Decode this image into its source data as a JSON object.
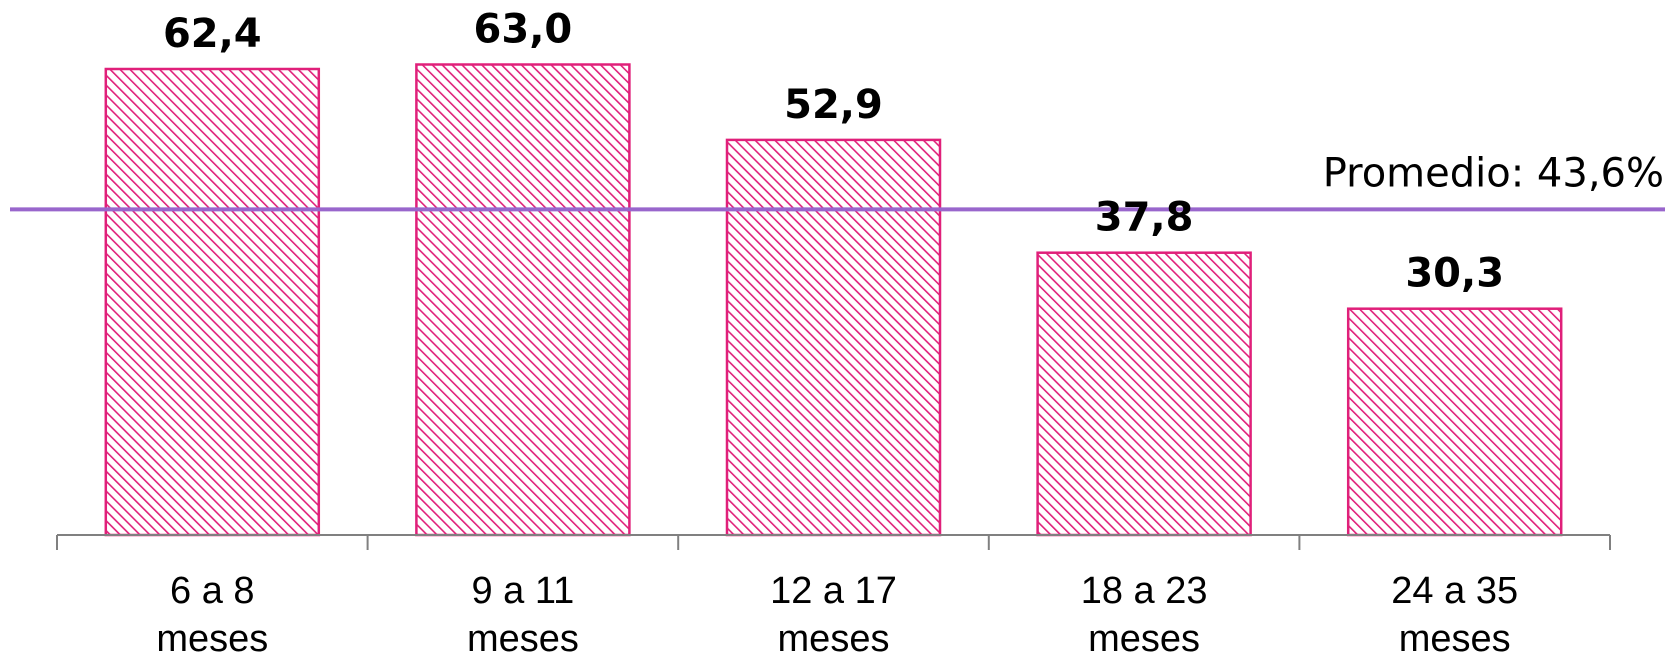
{
  "chart_data": {
    "type": "bar",
    "categories": [
      [
        "6 a 8",
        "meses"
      ],
      [
        "9 a 11",
        "meses"
      ],
      [
        "12 a 17",
        "meses"
      ],
      [
        "18 a 23",
        "meses"
      ],
      [
        "24 a 35",
        "meses"
      ]
    ],
    "values": [
      62.4,
      63.0,
      52.9,
      37.8,
      30.3
    ],
    "value_labels": [
      "62,4",
      "63,0",
      "52,9",
      "37,8",
      "30,3"
    ],
    "average": {
      "value": 43.6,
      "label": "Promedio: 43,6%"
    },
    "ylim": [
      0,
      66
    ],
    "grid": false,
    "legend": "none",
    "colors": {
      "bar_stroke": "#e0207a",
      "bar_hatch": "#e0207a",
      "average_line": "#9966cc",
      "axis": "#808080"
    }
  }
}
